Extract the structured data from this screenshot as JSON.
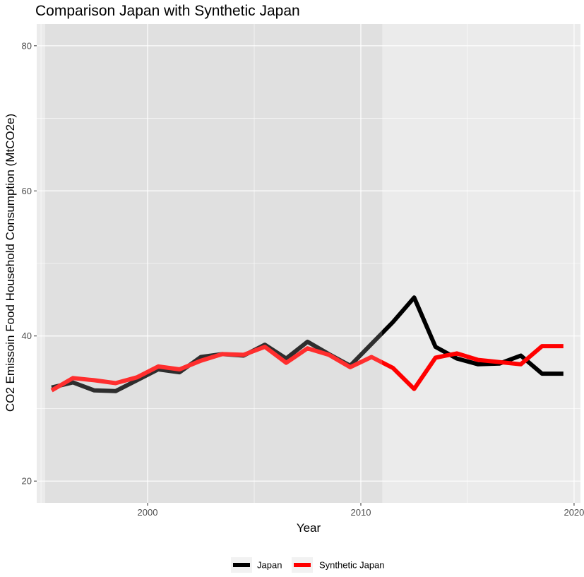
{
  "chart_data": {
    "type": "line",
    "title": "Comparison Japan with Synthetic Japan",
    "xlabel": "Year",
    "ylabel": "CO2 Emissoin Food Household Consumption (MtCO2e)",
    "xlim": [
      1994.8,
      2020.3
    ],
    "ylim": [
      17.0,
      83.0
    ],
    "x_ticks": [
      2000,
      2010,
      2020
    ],
    "y_ticks": [
      20,
      40,
      60,
      80
    ],
    "x_tick_labels": [
      "2000",
      "2010",
      "2020"
    ],
    "y_tick_labels": [
      "20",
      "40",
      "60",
      "80"
    ],
    "shaded_region": {
      "x_start": 1995.2,
      "x_end": 2011.0,
      "color": "#d9d9d9"
    },
    "grid": true,
    "panel_background": "#ebebeb",
    "legend_position": "bottom",
    "x": [
      1995.5,
      1996.5,
      1997.5,
      1998.5,
      1999.5,
      2000.5,
      2001.5,
      2002.5,
      2003.5,
      2004.5,
      2005.5,
      2006.5,
      2007.5,
      2008.5,
      2009.5,
      2010.5,
      2011.5,
      2012.5,
      2013.5,
      2014.5,
      2015.5,
      2016.5,
      2017.5,
      2018.5,
      2019.5
    ],
    "series": [
      {
        "name": "Japan",
        "color": "#000000",
        "values": [
          32.9,
          33.6,
          32.5,
          32.4,
          33.9,
          35.4,
          35.0,
          37.1,
          37.5,
          37.3,
          38.8,
          36.9,
          39.2,
          37.5,
          35.9,
          38.9,
          41.9,
          45.3,
          38.5,
          36.9,
          36.1,
          36.2,
          37.3,
          34.8,
          34.8
        ]
      },
      {
        "name": "Synthetic Japan",
        "color": "#ff0000",
        "values": [
          32.5,
          34.2,
          33.9,
          33.5,
          34.3,
          35.8,
          35.4,
          36.6,
          37.5,
          37.4,
          38.5,
          36.3,
          38.3,
          37.4,
          35.7,
          37.1,
          35.6,
          32.7,
          37.0,
          37.6,
          36.7,
          36.4,
          36.1,
          38.6,
          38.6
        ]
      }
    ]
  }
}
